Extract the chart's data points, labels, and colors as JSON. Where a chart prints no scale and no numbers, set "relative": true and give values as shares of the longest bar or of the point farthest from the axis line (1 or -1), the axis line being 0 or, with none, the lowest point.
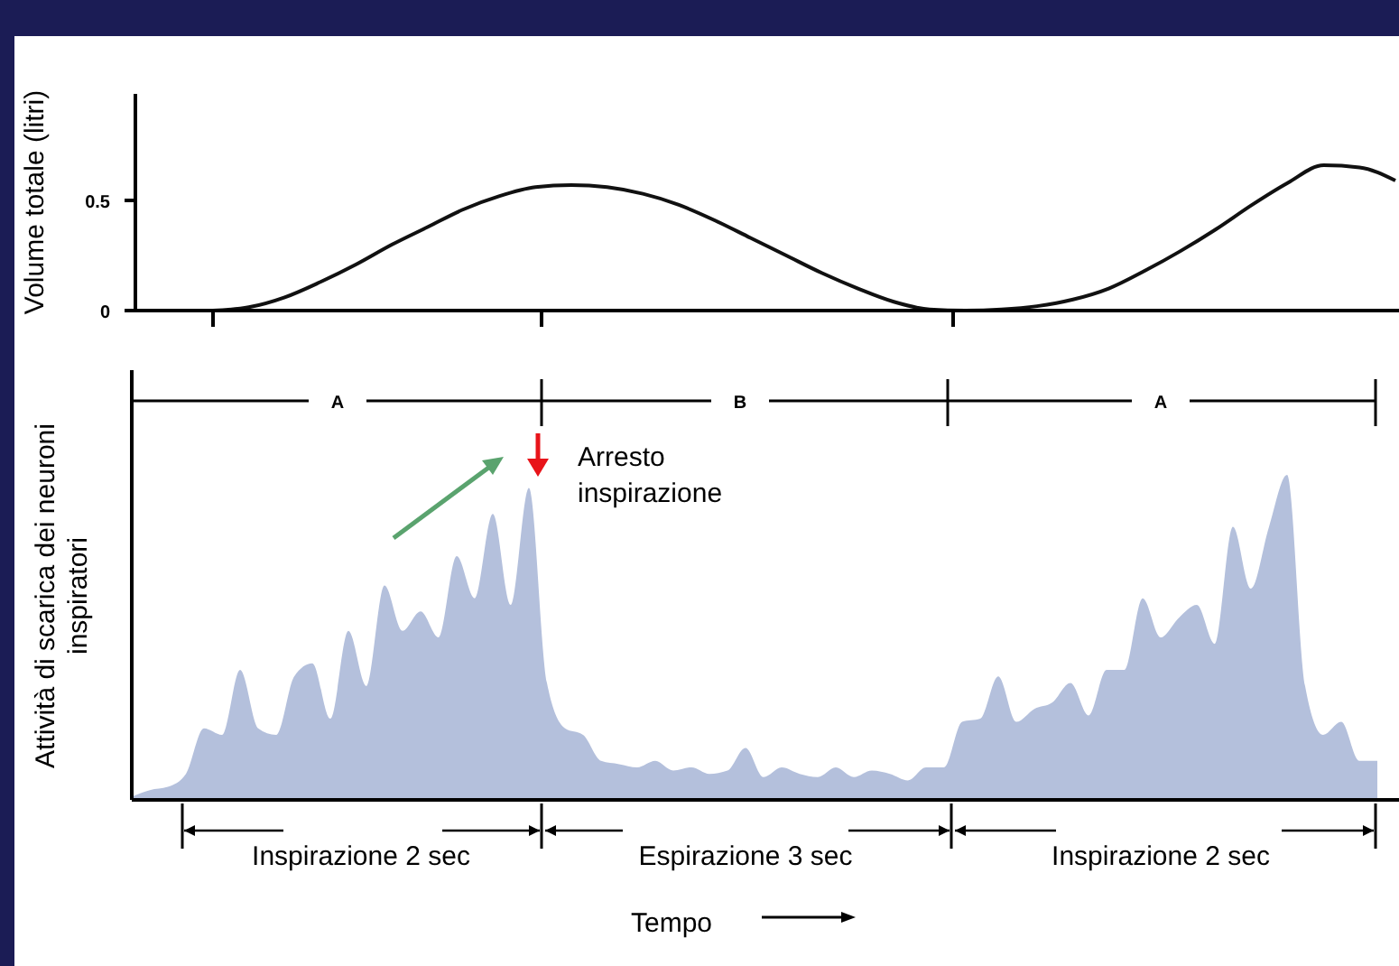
{
  "chart_data": [
    {
      "type": "line",
      "ylabel": "Volume totale (litri)",
      "categories": [
        null,
        null,
        null,
        null,
        null,
        null,
        null,
        null,
        null,
        null,
        null,
        null,
        null,
        null,
        null,
        null,
        null,
        null,
        null,
        null,
        null,
        null,
        null,
        null,
        null,
        null,
        null,
        null,
        null,
        null,
        null,
        null,
        null,
        null
      ],
      "values": [
        0,
        0.015,
        0.06,
        0.13,
        0.21,
        0.3,
        0.38,
        0.46,
        0.52,
        0.56,
        0.57,
        0.56,
        0.53,
        0.48,
        0.41,
        0.33,
        0.25,
        0.17,
        0.1,
        0.04,
        0.005,
        0,
        0.005,
        0.02,
        0.05,
        0.1,
        0.18,
        0.27,
        0.37,
        0.48,
        0.58,
        0.66,
        0.65,
        0.59
      ],
      "color": "#111111",
      "ylim": [
        0,
        1
      ],
      "yticks": [
        0,
        0.5
      ],
      "tick_labels": "y"
    },
    {
      "type": "area",
      "relative": true,
      "xlabel": "Tempo",
      "ylabel": "Attività di scarica dei neuroni inspiratori",
      "color": "#b4c0dc",
      "categories": [
        null,
        null,
        null,
        null,
        null,
        null,
        null,
        null,
        null,
        null,
        null,
        null,
        null,
        null,
        null,
        null,
        null,
        null,
        null,
        null,
        null,
        null,
        null,
        null,
        null,
        null,
        null,
        null,
        null,
        null,
        null,
        null,
        null,
        null,
        null,
        null,
        null,
        null,
        null,
        null,
        null,
        null,
        null,
        null,
        null,
        null,
        null,
        null,
        null,
        null,
        null,
        null,
        null,
        null,
        null,
        null,
        null,
        null,
        null,
        null,
        null,
        null,
        null,
        null,
        null,
        null,
        null,
        null,
        null,
        null
      ],
      "values": [
        0.01,
        0.03,
        0.04,
        0.08,
        0.22,
        0.2,
        0.4,
        0.22,
        0.2,
        0.38,
        0.42,
        0.25,
        0.52,
        0.35,
        0.66,
        0.52,
        0.58,
        0.5,
        0.75,
        0.62,
        0.88,
        0.6,
        0.96,
        0.36,
        0.22,
        0.2,
        0.12,
        0.11,
        0.1,
        0.12,
        0.09,
        0.1,
        0.08,
        0.09,
        0.16,
        0.07,
        0.1,
        0.08,
        0.07,
        0.1,
        0.07,
        0.09,
        0.08,
        0.06,
        0.1,
        0.1,
        0.24,
        0.25,
        0.38,
        0.24,
        0.28,
        0.3,
        0.36,
        0.26,
        0.4,
        0.4,
        0.62,
        0.5,
        0.56,
        0.6,
        0.48,
        0.84,
        0.65,
        0.84,
        1,
        0.35,
        0.2,
        0.24,
        0.12,
        0.12
      ],
      "annotations": [
        "A",
        "B",
        "A",
        "Arresto inspirazione",
        "Inspirazione 2 sec",
        "Espirazione 3 sec",
        "Inspirazione 2 sec"
      ]
    }
  ]
}
